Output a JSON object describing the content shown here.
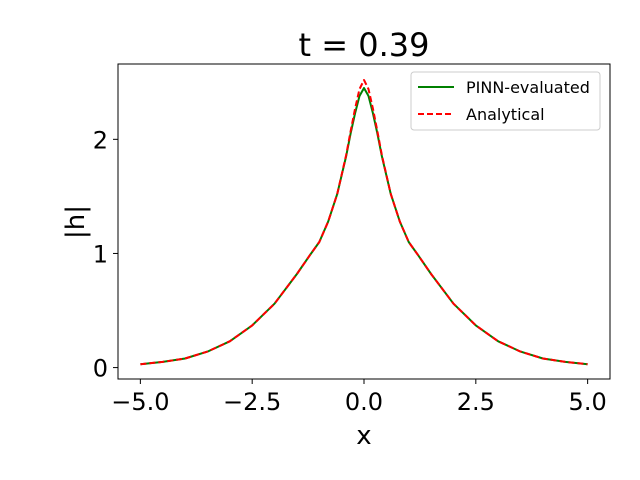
{
  "chart_data": {
    "type": "line",
    "title": "t = 0.39",
    "xlabel": "x",
    "ylabel": "|h|",
    "xlim": [
      -5.5,
      5.5
    ],
    "ylim": [
      -0.1,
      2.66
    ],
    "xticks": [
      -5.0,
      -2.5,
      0.0,
      2.5,
      5.0
    ],
    "xtick_labels": [
      "−5.0",
      "−2.5",
      "0.0",
      "2.5",
      "5.0"
    ],
    "yticks": [
      0,
      1,
      2
    ],
    "ytick_labels": [
      "0",
      "1",
      "2"
    ],
    "grid": false,
    "legend_position": "top-right",
    "series": [
      {
        "name": "PINN-evaluated",
        "color": "#008000",
        "style": "solid",
        "x": [
          -5.0,
          -4.5,
          -4.0,
          -3.5,
          -3.0,
          -2.5,
          -2.0,
          -1.5,
          -1.2,
          -1.0,
          -0.8,
          -0.6,
          -0.4,
          -0.3,
          -0.2,
          -0.1,
          0.0,
          0.1,
          0.2,
          0.3,
          0.4,
          0.6,
          0.8,
          1.0,
          1.2,
          1.5,
          2.0,
          2.5,
          3.0,
          3.5,
          4.0,
          4.5,
          5.0
        ],
        "y": [
          0.03,
          0.05,
          0.08,
          0.14,
          0.23,
          0.37,
          0.56,
          0.82,
          0.99,
          1.1,
          1.28,
          1.52,
          1.85,
          2.05,
          2.23,
          2.38,
          2.45,
          2.38,
          2.23,
          2.05,
          1.85,
          1.52,
          1.28,
          1.1,
          0.99,
          0.82,
          0.56,
          0.37,
          0.23,
          0.14,
          0.08,
          0.05,
          0.03
        ]
      },
      {
        "name": "Analytical",
        "color": "#ff0000",
        "style": "dashed",
        "x": [
          -5.0,
          -4.5,
          -4.0,
          -3.5,
          -3.0,
          -2.5,
          -2.0,
          -1.5,
          -1.2,
          -1.0,
          -0.8,
          -0.6,
          -0.4,
          -0.3,
          -0.2,
          -0.1,
          0.0,
          0.1,
          0.2,
          0.3,
          0.4,
          0.6,
          0.8,
          1.0,
          1.2,
          1.5,
          2.0,
          2.5,
          3.0,
          3.5,
          4.0,
          4.5,
          5.0
        ],
        "y": [
          0.03,
          0.05,
          0.08,
          0.14,
          0.23,
          0.37,
          0.56,
          0.82,
          0.99,
          1.1,
          1.28,
          1.52,
          1.86,
          2.07,
          2.27,
          2.44,
          2.52,
          2.44,
          2.27,
          2.07,
          1.86,
          1.52,
          1.28,
          1.1,
          0.99,
          0.82,
          0.56,
          0.37,
          0.23,
          0.14,
          0.08,
          0.05,
          0.03
        ]
      }
    ]
  }
}
